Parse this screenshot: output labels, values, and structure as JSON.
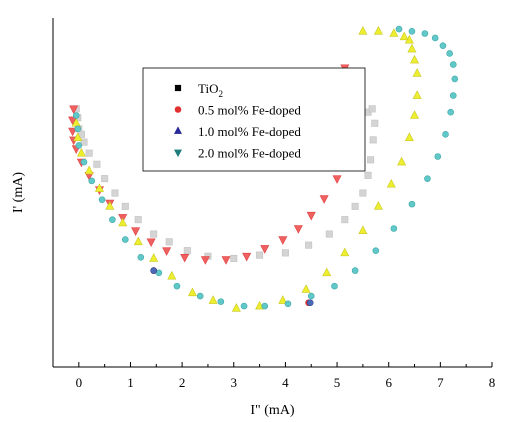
{
  "chart_data": {
    "type": "scatter",
    "title": "",
    "xlabel": "I\" (mA)",
    "ylabel": "I' (mA)",
    "xlim": [
      -0.5,
      8
    ],
    "ylim": [
      -0.15,
      3.0
    ],
    "xticks": [
      "0",
      "1",
      "2",
      "3",
      "4",
      "5",
      "6",
      "7",
      "8"
    ],
    "yticks": [],
    "grid": false,
    "legend_placement": "top-center",
    "legend": [
      {
        "label": "TiO",
        "sub": "2",
        "marker": "square",
        "color": "#000000"
      },
      {
        "label": "0.5 mol% Fe-doped",
        "sub": "",
        "marker": "circle",
        "color": "#e03030"
      },
      {
        "label": "1.0 mol% Fe-doped",
        "sub": "",
        "marker": "triangle-up",
        "color": "#2a2a9a"
      },
      {
        "label": "2.0 mol% Fe-doped",
        "sub": "",
        "marker": "triangle-down",
        "color": "#1e7e7e"
      }
    ],
    "series": [
      {
        "marker": "square",
        "color": "#d4d4d4",
        "stroke": "#c0c0c0",
        "x": [
          -0.05,
          -0.02,
          0.0,
          0.05,
          0.1,
          0.2,
          0.35,
          0.5,
          0.7,
          0.9,
          1.15,
          1.45,
          1.75,
          2.1,
          2.5,
          3.0,
          3.5,
          4.0,
          4.45,
          4.85,
          5.15,
          5.35,
          5.5,
          5.6,
          5.65,
          5.7,
          5.73,
          5.6,
          5.68
        ],
        "y": [
          2.18,
          2.1,
          2.0,
          1.95,
          1.88,
          1.78,
          1.68,
          1.55,
          1.42,
          1.3,
          1.18,
          1.05,
          0.98,
          0.9,
          0.85,
          0.83,
          0.86,
          0.88,
          0.95,
          1.05,
          1.18,
          1.3,
          1.42,
          1.58,
          1.72,
          1.9,
          2.05,
          2.15,
          2.18
        ]
      },
      {
        "marker": "triangle-down",
        "color": "#f06060",
        "stroke": "#e04040",
        "x": [
          -0.1,
          -0.12,
          -0.12,
          -0.1,
          -0.05,
          0.05,
          0.2,
          0.4,
          0.6,
          0.85,
          1.1,
          1.4,
          1.7,
          2.05,
          2.45,
          2.85,
          3.25,
          3.6,
          3.95,
          4.25,
          4.5,
          4.75,
          5.0,
          5.15,
          5.25,
          5.3,
          5.25,
          5.2,
          5.15,
          5.3,
          5.4
        ],
        "y": [
          2.18,
          2.08,
          1.98,
          1.9,
          1.82,
          1.7,
          1.58,
          1.45,
          1.33,
          1.2,
          1.08,
          0.98,
          0.9,
          0.84,
          0.82,
          0.82,
          0.85,
          0.92,
          1.0,
          1.1,
          1.22,
          1.37,
          1.55,
          1.72,
          1.88,
          2.05,
          2.25,
          2.4,
          2.55,
          2.5,
          2.2
        ]
      },
      {
        "marker": "triangle-up",
        "color": "#eeee30",
        "stroke": "#c8c820",
        "x": [
          -0.05,
          -0.02,
          0.05,
          0.2,
          0.4,
          0.6,
          0.85,
          1.15,
          1.45,
          1.8,
          2.2,
          2.6,
          3.05,
          3.5,
          3.95,
          4.4,
          4.8,
          5.15,
          5.5,
          5.8,
          6.05,
          6.25,
          6.4,
          6.5,
          6.55,
          6.55,
          6.5,
          6.45,
          6.4,
          6.3,
          6.1,
          5.8,
          5.5
        ],
        "y": [
          2.05,
          1.92,
          1.78,
          1.62,
          1.46,
          1.3,
          1.15,
          0.98,
          0.83,
          0.67,
          0.52,
          0.45,
          0.38,
          0.4,
          0.45,
          0.55,
          0.7,
          0.88,
          1.08,
          1.3,
          1.5,
          1.7,
          1.92,
          2.12,
          2.3,
          2.5,
          2.62,
          2.72,
          2.8,
          2.83,
          2.86,
          2.88,
          2.88
        ]
      },
      {
        "marker": "circle",
        "color": "#60c8c8",
        "stroke": "#40a8a8",
        "x": [
          -0.05,
          -0.02,
          0.0,
          0.1,
          0.25,
          0.45,
          0.65,
          0.9,
          1.2,
          1.55,
          1.9,
          2.35,
          2.75,
          3.2,
          3.6,
          4.05,
          4.5,
          4.95,
          5.35,
          5.75,
          6.1,
          6.45,
          6.75,
          6.95,
          7.1,
          7.2,
          7.25,
          7.28,
          7.25,
          7.18,
          7.05,
          6.9,
          6.7,
          6.45,
          6.2
        ],
        "y": [
          2.12,
          2.0,
          1.85,
          1.7,
          1.53,
          1.36,
          1.18,
          1.0,
          0.84,
          0.7,
          0.58,
          0.49,
          0.44,
          0.4,
          0.4,
          0.42,
          0.49,
          0.58,
          0.72,
          0.9,
          1.1,
          1.32,
          1.55,
          1.75,
          1.95,
          2.15,
          2.3,
          2.45,
          2.58,
          2.68,
          2.75,
          2.82,
          2.86,
          2.88,
          2.9
        ]
      },
      {
        "marker": "circle",
        "color": "#e03030",
        "stroke": "#c02020",
        "x": [
          1.45,
          4.45
        ],
        "y": [
          0.72,
          0.43
        ]
      },
      {
        "marker": "circle",
        "color": "#4a6ab8",
        "stroke": "#304a98",
        "x": [
          1.45,
          4.48
        ],
        "y": [
          0.72,
          0.43
        ]
      }
    ]
  }
}
